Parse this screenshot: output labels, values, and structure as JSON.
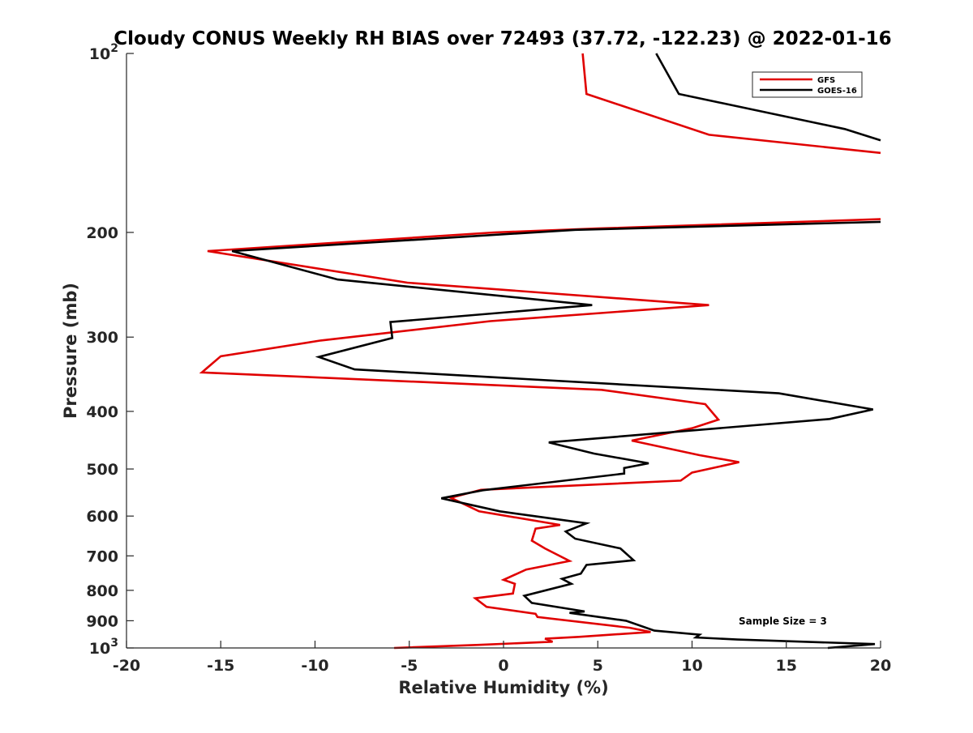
{
  "chart_data": {
    "type": "line",
    "title": "Cloudy CONUS Weekly RH BIAS over 72493 (37.72, -122.23) @ 2022-01-16",
    "xlabel": "Relative Humidity (%)",
    "ylabel": "Pressure (mb)",
    "xlim": [
      -20,
      20
    ],
    "ylim": [
      100,
      1000
    ],
    "y_scale": "log",
    "y_reversed": true,
    "grid": false,
    "legend_position": "top-right",
    "annotation": "Sample Size = 3",
    "x_ticks": [
      {
        "value": -20,
        "label": "-20"
      },
      {
        "value": -15,
        "label": "-15"
      },
      {
        "value": -10,
        "label": "-10"
      },
      {
        "value": -5,
        "label": "-5"
      },
      {
        "value": 0,
        "label": "0"
      },
      {
        "value": 5,
        "label": "5"
      },
      {
        "value": 10,
        "label": "10"
      },
      {
        "value": 15,
        "label": "15"
      },
      {
        "value": 20,
        "label": "20"
      }
    ],
    "y_ticks": [
      {
        "value": 100,
        "label": "10",
        "sup": "2"
      },
      {
        "value": 200,
        "label": "200",
        "sup": ""
      },
      {
        "value": 300,
        "label": "300",
        "sup": ""
      },
      {
        "value": 400,
        "label": "400",
        "sup": ""
      },
      {
        "value": 500,
        "label": "500",
        "sup": ""
      },
      {
        "value": 600,
        "label": "600",
        "sup": ""
      },
      {
        "value": 700,
        "label": "700",
        "sup": ""
      },
      {
        "value": 800,
        "label": "800",
        "sup": ""
      },
      {
        "value": 900,
        "label": "900",
        "sup": ""
      },
      {
        "value": 1000,
        "label": "10",
        "sup": "3"
      }
    ],
    "series": [
      {
        "name": "GFS",
        "color": "#e00000",
        "points": [
          [
            4.2,
            100
          ],
          [
            4.4,
            117
          ],
          [
            10.9,
            137
          ],
          [
            20,
            147
          ],
          [
            null,
            null
          ],
          [
            20,
            190
          ],
          [
            5,
            197
          ],
          [
            -0.5,
            200
          ],
          [
            -15.7,
            215
          ],
          [
            -5.1,
            243
          ],
          [
            10.9,
            265
          ],
          [
            -0.7,
            282
          ],
          [
            -9.7,
            304
          ],
          [
            -15.0,
            323
          ],
          [
            -16.0,
            344
          ],
          [
            5.2,
            368
          ],
          [
            10.7,
            389
          ],
          [
            11.4,
            413
          ],
          [
            10.0,
            427
          ],
          [
            6.8,
            448
          ],
          [
            10.4,
            474
          ],
          [
            12.5,
            487
          ],
          [
            10.0,
            507
          ],
          [
            9.4,
            523
          ],
          [
            -1.2,
            542
          ],
          [
            -2.8,
            559
          ],
          [
            -1.3,
            589
          ],
          [
            3.0,
            621
          ],
          [
            1.7,
            630
          ],
          [
            1.5,
            660
          ],
          [
            2.2,
            680
          ],
          [
            3.5,
            714
          ],
          [
            1.2,
            738
          ],
          [
            0.0,
            768
          ],
          [
            0.6,
            780
          ],
          [
            0.5,
            810
          ],
          [
            -1.5,
            825
          ],
          [
            -0.9,
            853
          ],
          [
            1.7,
            876
          ],
          [
            1.8,
            887
          ],
          [
            6.7,
            925
          ],
          [
            7.8,
            940
          ],
          [
            4.0,
            958
          ],
          [
            2.2,
            965
          ],
          [
            2.6,
            976
          ],
          [
            -1.3,
            988
          ],
          [
            -5.8,
            1000
          ]
        ]
      },
      {
        "name": "GOES-16",
        "color": "#000000",
        "points": [
          [
            8.1,
            100
          ],
          [
            9.3,
            117
          ],
          [
            18.1,
            134
          ],
          [
            20,
            140
          ],
          [
            null,
            null
          ],
          [
            20,
            192
          ],
          [
            3.8,
            198
          ],
          [
            -14.4,
            215
          ],
          [
            -8.8,
            240
          ],
          [
            4.7,
            265
          ],
          [
            -6.0,
            283
          ],
          [
            -5.9,
            301
          ],
          [
            -9.8,
            324
          ],
          [
            -7.9,
            340
          ],
          [
            14.6,
            373
          ],
          [
            19.6,
            397
          ],
          [
            17.3,
            412
          ],
          [
            2.4,
            451
          ],
          [
            4.8,
            471
          ],
          [
            7.7,
            489
          ],
          [
            6.4,
            498
          ],
          [
            6.4,
            509
          ],
          [
            -1.1,
            543
          ],
          [
            -3.3,
            560
          ],
          [
            -0.2,
            589
          ],
          [
            4.4,
            617
          ],
          [
            3.3,
            637
          ],
          [
            3.8,
            655
          ],
          [
            6.2,
            680
          ],
          [
            6.9,
            712
          ],
          [
            4.4,
            725
          ],
          [
            4.1,
            750
          ],
          [
            3.1,
            765
          ],
          [
            3.6,
            780
          ],
          [
            1.1,
            817
          ],
          [
            1.5,
            840
          ],
          [
            4.3,
            868
          ],
          [
            3.5,
            873
          ],
          [
            6.5,
            900
          ],
          [
            8.0,
            935
          ],
          [
            10.4,
            950
          ],
          [
            10.2,
            960
          ],
          [
            12.4,
            968
          ],
          [
            19.7,
            985
          ],
          [
            17.2,
            1000
          ]
        ]
      }
    ]
  }
}
